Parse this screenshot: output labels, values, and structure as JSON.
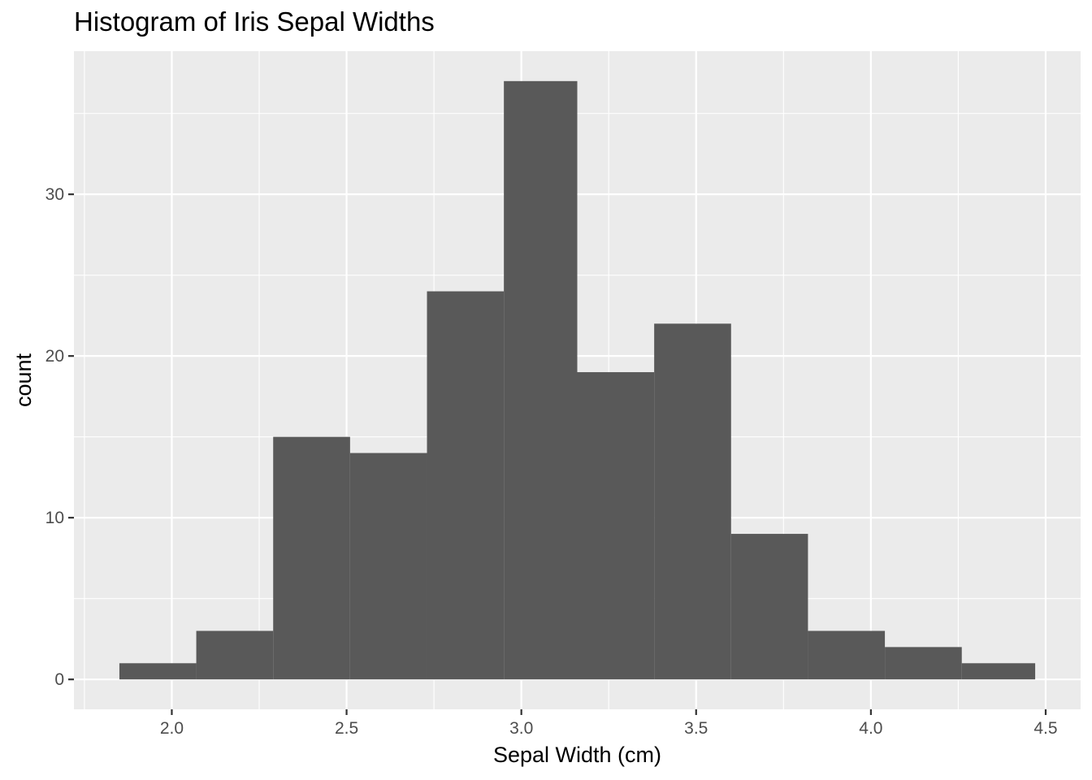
{
  "chart_data": {
    "type": "bar",
    "title": "Histogram of Iris Sepal Widths",
    "xlabel": "Sepal Width (cm)",
    "ylabel": "count",
    "bins": [
      {
        "x0": 1.85,
        "x1": 2.07,
        "count": 1
      },
      {
        "x0": 2.07,
        "x1": 2.29,
        "count": 3
      },
      {
        "x0": 2.29,
        "x1": 2.51,
        "count": 15
      },
      {
        "x0": 2.51,
        "x1": 2.73,
        "count": 14
      },
      {
        "x0": 2.73,
        "x1": 2.95,
        "count": 24
      },
      {
        "x0": 2.95,
        "x1": 3.16,
        "count": 37
      },
      {
        "x0": 3.16,
        "x1": 3.38,
        "count": 19
      },
      {
        "x0": 3.38,
        "x1": 3.6,
        "count": 22
      },
      {
        "x0": 3.6,
        "x1": 3.82,
        "count": 9
      },
      {
        "x0": 3.82,
        "x1": 4.04,
        "count": 3
      },
      {
        "x0": 4.04,
        "x1": 4.26,
        "count": 2
      },
      {
        "x0": 4.26,
        "x1": 4.47,
        "count": 1
      }
    ],
    "x_ticks": [
      "2.0",
      "2.5",
      "3.0",
      "3.5",
      "4.0",
      "4.5"
    ],
    "y_ticks": [
      "0",
      "10",
      "20",
      "30"
    ],
    "xlim": [
      1.72,
      4.6
    ],
    "ylim": [
      -1.85,
      38.85
    ],
    "grid": true,
    "colors": {
      "bar": "#595959",
      "panel": "#ebebeb",
      "grid": "#ffffff"
    }
  }
}
